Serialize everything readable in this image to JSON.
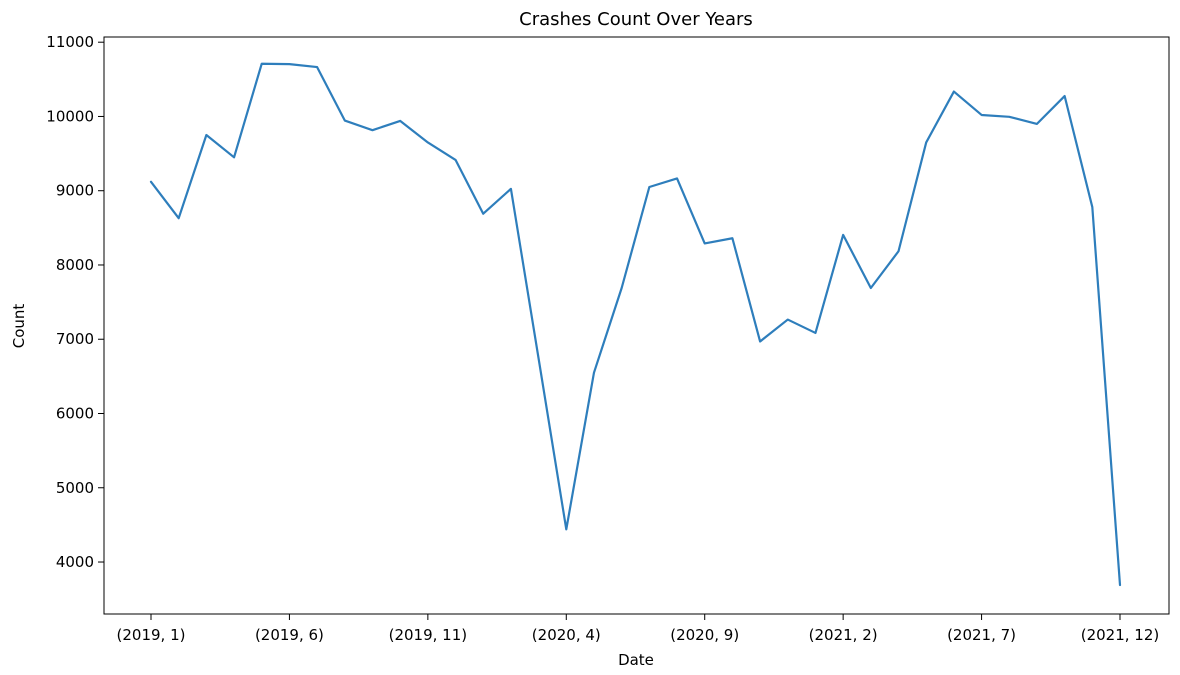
{
  "chart_data": {
    "type": "line",
    "title": "Crashes Count Over Years",
    "xlabel": "Date",
    "ylabel": "Count",
    "x": [
      "(2019, 1)",
      "(2019, 2)",
      "(2019, 3)",
      "(2019, 4)",
      "(2019, 5)",
      "(2019, 6)",
      "(2019, 7)",
      "(2019, 8)",
      "(2019, 9)",
      "(2019, 10)",
      "(2019, 11)",
      "(2019, 12)",
      "(2020, 1)",
      "(2020, 2)",
      "(2020, 3)",
      "(2020, 4)",
      "(2020, 5)",
      "(2020, 6)",
      "(2020, 7)",
      "(2020, 8)",
      "(2020, 9)",
      "(2020, 10)",
      "(2020, 11)",
      "(2020, 12)",
      "(2021, 1)",
      "(2021, 2)",
      "(2021, 3)",
      "(2021, 4)",
      "(2021, 5)",
      "(2021, 6)",
      "(2021, 7)",
      "(2021, 8)",
      "(2021, 9)",
      "(2021, 10)",
      "(2021, 11)",
      "(2021, 12)"
    ],
    "x_tick_labels": [
      "(2019, 1)",
      "(2019, 6)",
      "(2019, 11)",
      "(2020, 4)",
      "(2020, 9)",
      "(2021, 2)",
      "(2021, 7)",
      "(2021, 12)"
    ],
    "y_ticks": [
      4000,
      5000,
      6000,
      7000,
      8000,
      9000,
      10000,
      11000
    ],
    "ylim": [
      3300,
      11070
    ],
    "grid": false,
    "series": [
      {
        "color": "#2e7ebc",
        "values": [
          9120,
          8630,
          9750,
          9450,
          10710,
          10705,
          10665,
          9945,
          9815,
          9940,
          9650,
          9415,
          8690,
          9025,
          6740,
          4440,
          6550,
          7690,
          9050,
          9165,
          8290,
          8360,
          6970,
          7265,
          7085,
          8405,
          7690,
          8185,
          9650,
          10335,
          10020,
          9995,
          9900,
          10275,
          8780,
          3690
        ]
      }
    ]
  }
}
